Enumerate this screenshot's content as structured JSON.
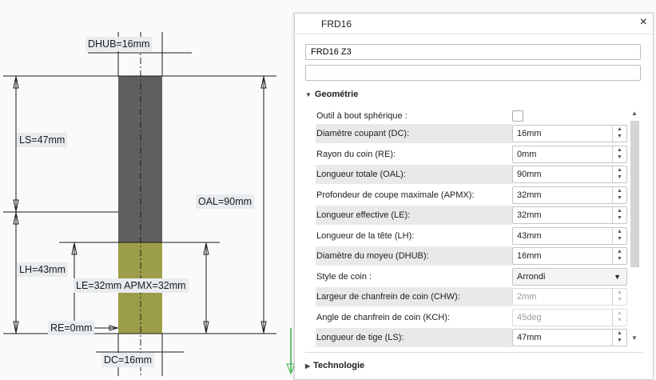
{
  "drawing": {
    "dim_dhub": "DHUB=16mm",
    "dim_ls": "LS=47mm",
    "dim_oal": "OAL=90mm",
    "dim_lh": "LH=43mm",
    "dim_le_apmx": "LE=32mm  APMX=32mm",
    "dim_re": "RE=0mm",
    "dim_dc": "DC=16mm",
    "colors": {
      "shank": "#5f5f5f",
      "flute": "#9c9d48",
      "line": "#1a1a1a"
    }
  },
  "panel": {
    "title": "FRD16",
    "close_label": "×",
    "name_value": "FRD16 Z3",
    "comment_value": "",
    "geometry_header": "Geométrie",
    "technology_header": "Technologie",
    "rows": [
      {
        "label": "Outil à bout sphérique :",
        "kind": "checkbox",
        "checked": false
      },
      {
        "label": "Diamètre coupant (DC):",
        "value": "16mm"
      },
      {
        "label": "Rayon du coin (RE):",
        "value": "0mm"
      },
      {
        "label": "Longueur totale (OAL):",
        "value": "90mm"
      },
      {
        "label": "Profondeur de coupe maximale (APMX):",
        "value": "32mm"
      },
      {
        "label": "Longueur effective (LE):",
        "value": "32mm"
      },
      {
        "label": "Longueur de la tête (LH):",
        "value": "43mm"
      },
      {
        "label": "Diamètre du moyeu (DHUB):",
        "value": "16mm"
      },
      {
        "label": "Style de coin :",
        "kind": "select",
        "value": "Arrondi"
      },
      {
        "label": "Largeur de chanfrein de coin (CHW):",
        "value": "2mm",
        "disabled": true
      },
      {
        "label": "Angle de chanfrein de coin (KCH):",
        "value": "45deg",
        "disabled": true
      },
      {
        "label": "Longueur de tige (LS):",
        "value": "47mm"
      }
    ]
  }
}
